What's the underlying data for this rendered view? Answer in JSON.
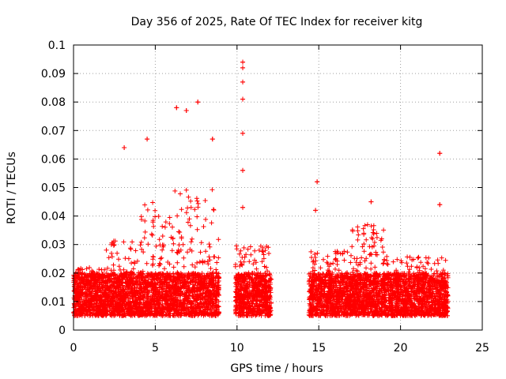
{
  "chart_data": {
    "type": "scatter",
    "title": "Day 356 of 2025, Rate Of TEC Index for receiver kitg",
    "xlabel": "GPS time / hours",
    "ylabel": "ROTI / TECUs",
    "xlim": [
      0,
      25
    ],
    "ylim": [
      0,
      0.1
    ],
    "x_ticks": [
      0,
      5,
      10,
      15,
      20,
      25
    ],
    "x_tick_labels": [
      "0",
      "5",
      "10",
      "15",
      "20",
      "25"
    ],
    "y_ticks": [
      0,
      0.01,
      0.02,
      0.03,
      0.04,
      0.05,
      0.06,
      0.07,
      0.08,
      0.09,
      0.1
    ],
    "y_tick_labels": [
      "0",
      "0.01",
      "0.02",
      "0.03",
      "0.04",
      "0.05",
      "0.06",
      "0.07",
      "0.08",
      "0.09",
      "0.1"
    ],
    "grid": true,
    "marker": "+",
    "series": [
      {
        "name": "ROTI",
        "color": "#ff0000",
        "coverage_hours": [
          [
            0.0,
            8.9
          ],
          [
            9.9,
            12.1
          ],
          [
            14.4,
            22.9
          ]
        ],
        "typical_range": [
          0.005,
          0.02
        ],
        "notable_points": [
          {
            "x": 3.1,
            "y": 0.064
          },
          {
            "x": 4.5,
            "y": 0.067
          },
          {
            "x": 6.3,
            "y": 0.078
          },
          {
            "x": 6.9,
            "y": 0.077
          },
          {
            "x": 7.6,
            "y": 0.08
          },
          {
            "x": 8.5,
            "y": 0.067
          },
          {
            "x": 10.35,
            "y": 0.094
          },
          {
            "x": 10.35,
            "y": 0.092
          },
          {
            "x": 10.35,
            "y": 0.087
          },
          {
            "x": 10.35,
            "y": 0.081
          },
          {
            "x": 10.35,
            "y": 0.069
          },
          {
            "x": 10.35,
            "y": 0.056
          },
          {
            "x": 10.35,
            "y": 0.043
          },
          {
            "x": 14.9,
            "y": 0.052
          },
          {
            "x": 14.8,
            "y": 0.042
          },
          {
            "x": 18.2,
            "y": 0.045
          },
          {
            "x": 22.4,
            "y": 0.062
          },
          {
            "x": 22.4,
            "y": 0.044
          }
        ]
      }
    ]
  }
}
